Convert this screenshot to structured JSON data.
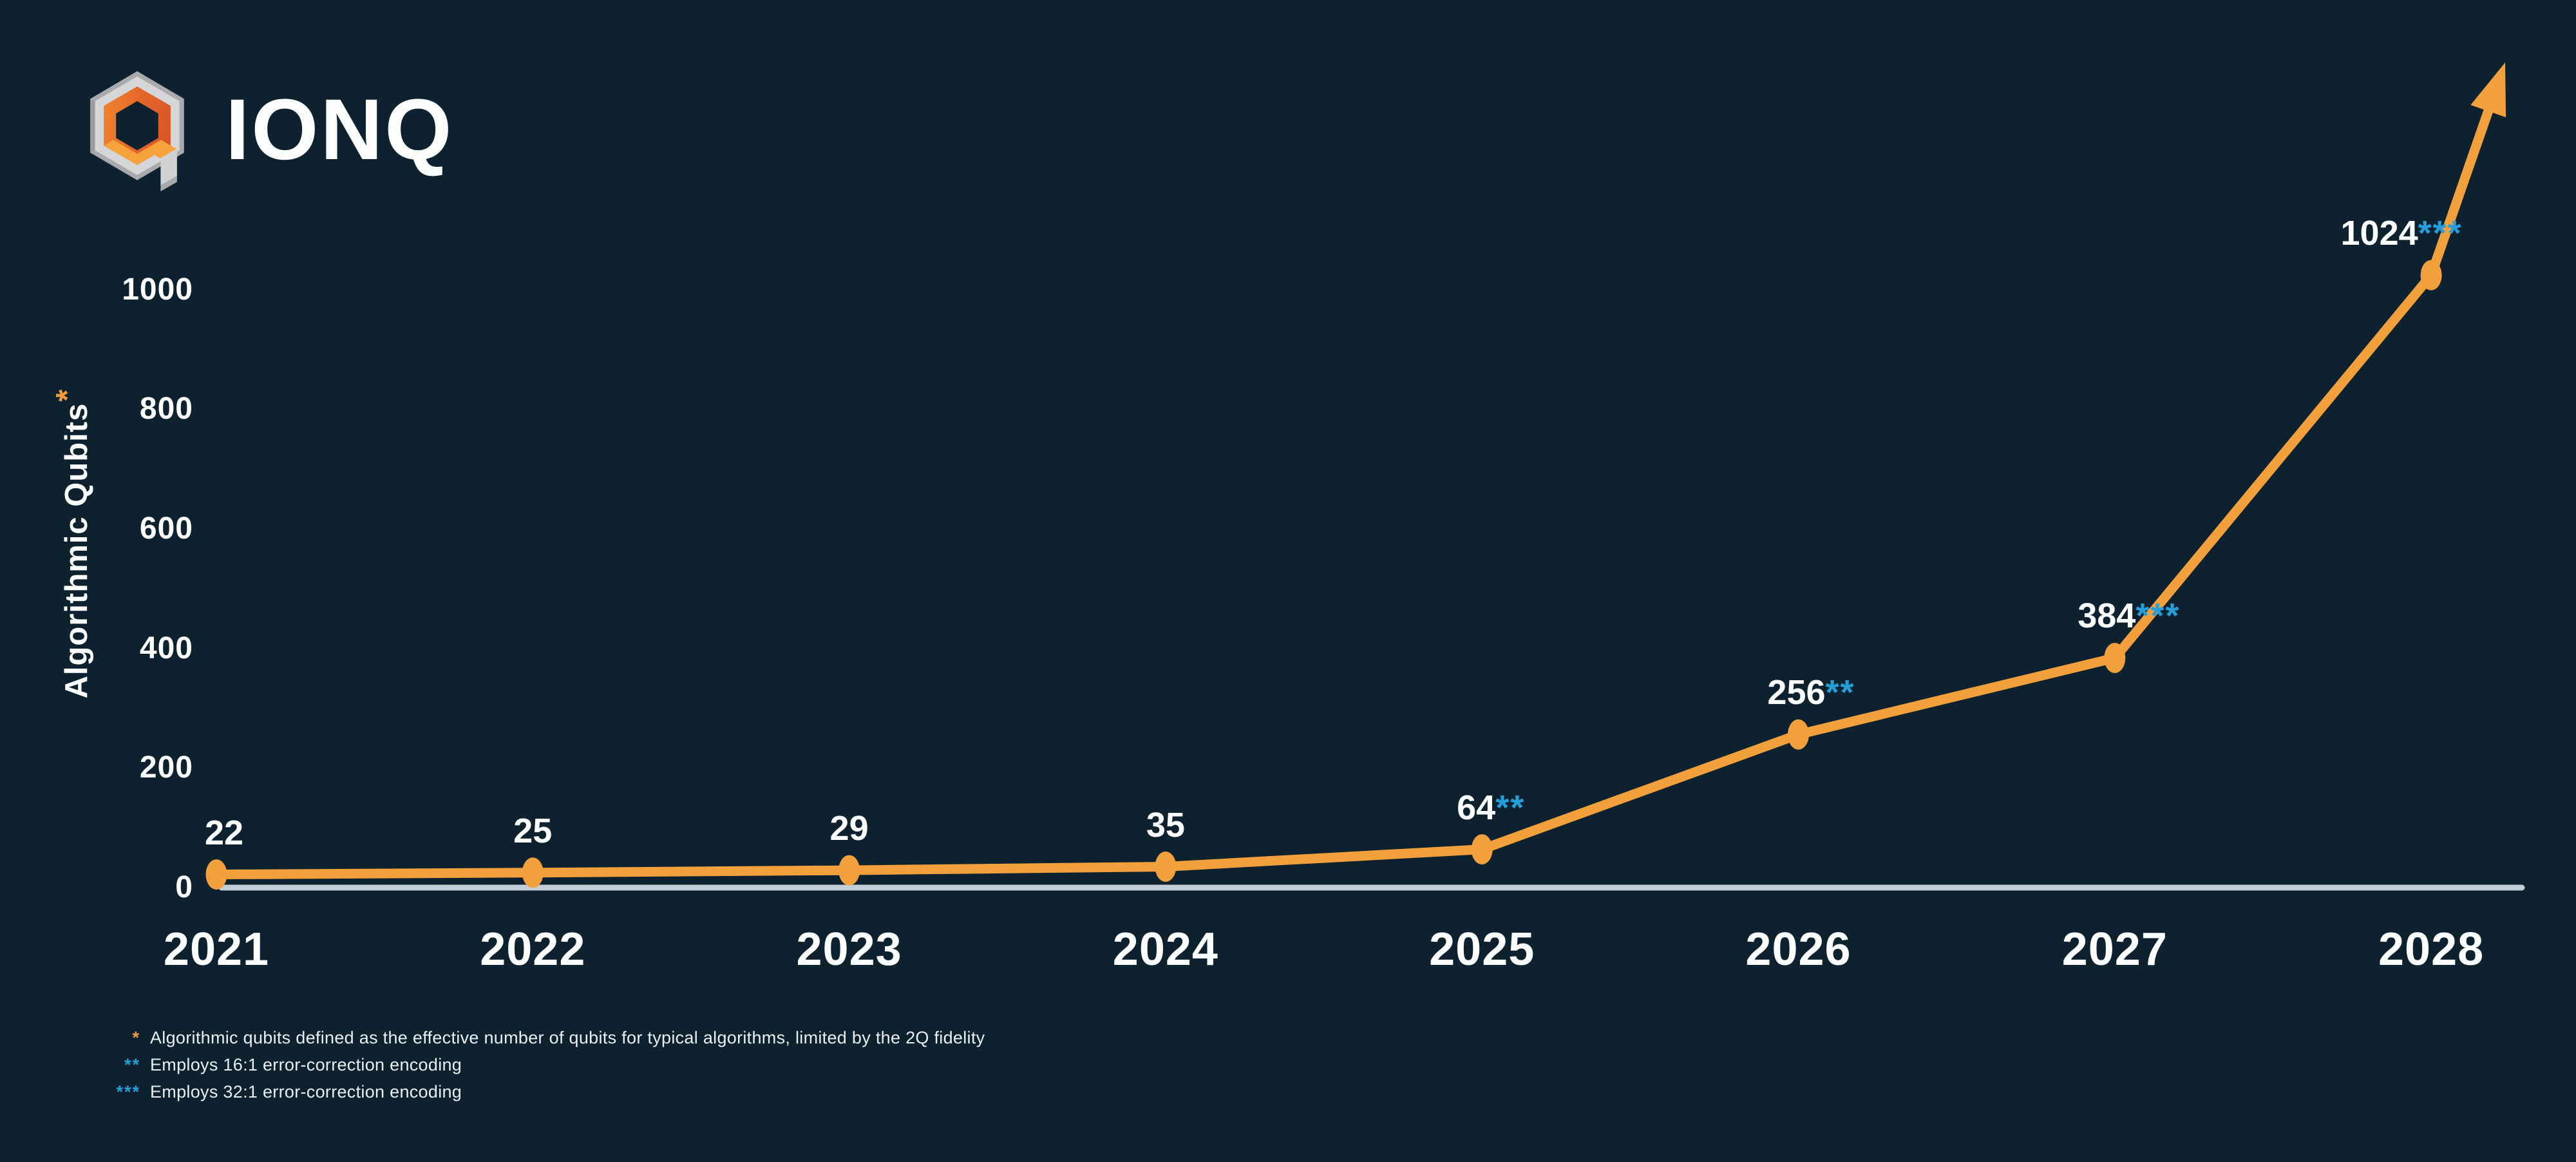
{
  "brand": {
    "wordmark": "IONQ"
  },
  "colors": {
    "background": "#0E212F",
    "line_orange": "#F2A03C",
    "accent_orange": "#F49A3A",
    "accent_blue": "#259FDA",
    "axis_line": "#C2CDD5",
    "text_white": "#FCFDFD",
    "logo_gray_light": "#D4D6D8",
    "logo_gray_dark": "#A8AAAD",
    "logo_orange_dark": "#DC5727",
    "logo_orange_light": "#F7A33D"
  },
  "chart_data": {
    "type": "line",
    "title": "",
    "ylabel": "Algorithmic Qubits",
    "ylabel_marker": "*",
    "xlabel": "",
    "categories": [
      "2021",
      "2022",
      "2023",
      "2024",
      "2025",
      "2026",
      "2027",
      "2028"
    ],
    "series": [
      {
        "name": "Algorithmic Qubits",
        "values": [
          22,
          25,
          29,
          35,
          64,
          256,
          384,
          1024
        ]
      }
    ],
    "point_labels": [
      {
        "value": "22",
        "marker": ""
      },
      {
        "value": "25",
        "marker": ""
      },
      {
        "value": "29",
        "marker": ""
      },
      {
        "value": "35",
        "marker": ""
      },
      {
        "value": "64",
        "marker": "**"
      },
      {
        "value": "256",
        "marker": "**"
      },
      {
        "value": "384",
        "marker": "***"
      },
      {
        "value": "1024",
        "marker": "***"
      }
    ],
    "yticks": [
      0,
      200,
      400,
      600,
      800,
      1000
    ],
    "ylim": [
      0,
      1100
    ],
    "grid": false,
    "legend": "none",
    "trend_arrow_beyond_last_point": true
  },
  "footnotes": [
    {
      "marker": "*",
      "accent": "orange",
      "text": "Algorithmic qubits defined as the effective number of qubits for typical algorithms, limited by the 2Q fidelity"
    },
    {
      "marker": "**",
      "accent": "blue",
      "text": "Employs 16:1 error-correction encoding"
    },
    {
      "marker": "***",
      "accent": "blue",
      "text": "Employs 32:1 error-correction encoding"
    }
  ]
}
